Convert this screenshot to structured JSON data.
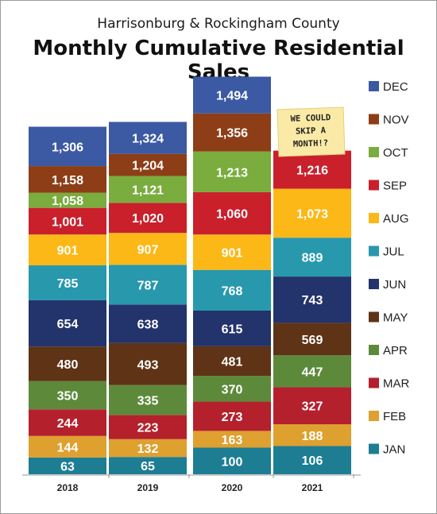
{
  "chart_data": {
    "type": "bar",
    "stacked": true,
    "title": "Monthly Cumulative Residential Sales",
    "subtitle": "Harrisonburg & Rockingham County",
    "categories": [
      "2018",
      "2019",
      "2020",
      "2021"
    ],
    "series": [
      {
        "name": "JAN",
        "color": "#1d7d93",
        "values": [
          63,
          65,
          100,
          106
        ]
      },
      {
        "name": "FEB",
        "color": "#dea02f",
        "values": [
          144,
          132,
          163,
          188
        ]
      },
      {
        "name": "MAR",
        "color": "#b5202d",
        "values": [
          244,
          223,
          273,
          327
        ]
      },
      {
        "name": "APR",
        "color": "#5c8a3a",
        "values": [
          350,
          335,
          370,
          447
        ]
      },
      {
        "name": "MAY",
        "color": "#5e3316",
        "values": [
          480,
          493,
          481,
          569
        ]
      },
      {
        "name": "JUN",
        "color": "#23336b",
        "values": [
          654,
          638,
          615,
          743
        ]
      },
      {
        "name": "JUL",
        "color": "#2898ad",
        "values": [
          785,
          787,
          768,
          889
        ]
      },
      {
        "name": "AUG",
        "color": "#fbb817",
        "values": [
          901,
          907,
          901,
          1073
        ]
      },
      {
        "name": "SEP",
        "color": "#c9202c",
        "values": [
          1001,
          1020,
          1060,
          1216
        ]
      },
      {
        "name": "OCT",
        "color": "#7aac3e",
        "values": [
          1058,
          1121,
          1213,
          null
        ]
      },
      {
        "name": "NOV",
        "color": "#8d3e16",
        "values": [
          1158,
          1204,
          1356,
          null
        ]
      },
      {
        "name": "DEC",
        "color": "#3c59a3",
        "values": [
          1306,
          1324,
          1494,
          null
        ]
      }
    ],
    "legend": "right",
    "grid": false,
    "annotation": "WE COULD SKIP A MONTH!?",
    "note_color": "#fbeaa6"
  }
}
